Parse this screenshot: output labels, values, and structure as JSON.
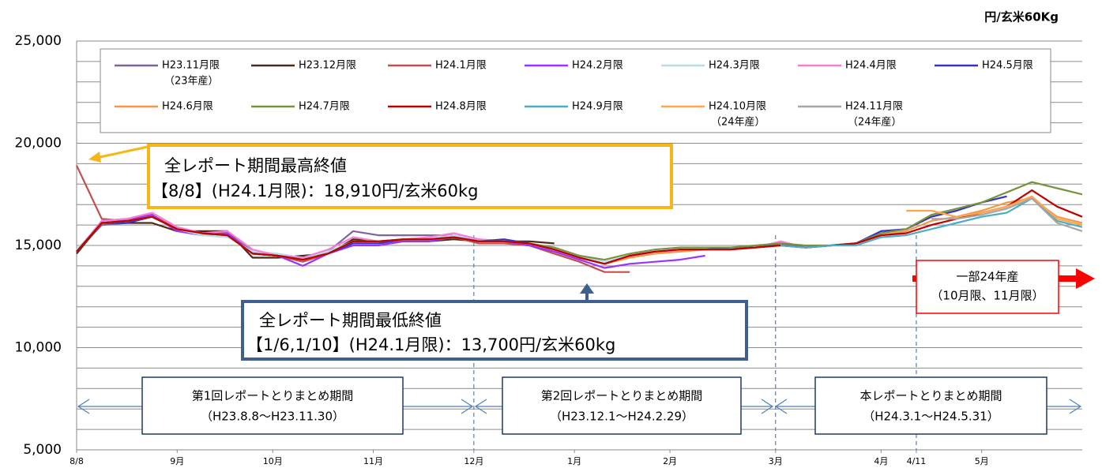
{
  "chart_data": {
    "type": "line",
    "unit_label": "円/玄米60Kg",
    "x": [
      0,
      5,
      10,
      15,
      20,
      25,
      30,
      35,
      40,
      45,
      50,
      55,
      60,
      65,
      70,
      75,
      80,
      85,
      90,
      95,
      100,
      105,
      110,
      115,
      120,
      125,
      130,
      135,
      140,
      145,
      150,
      155,
      160,
      165,
      170,
      175,
      180,
      185,
      190,
      195,
      200
    ],
    "xlim": [
      0,
      200
    ],
    "xticks": [
      {
        "value": 0,
        "label": "8/8"
      },
      {
        "value": 20,
        "label": "9月"
      },
      {
        "value": 39,
        "label": "10月"
      },
      {
        "value": 59,
        "label": "11月"
      },
      {
        "value": 79,
        "label": "12月"
      },
      {
        "value": 99,
        "label": "1月"
      },
      {
        "value": 118,
        "label": "2月"
      },
      {
        "value": 139,
        "label": "3月"
      },
      {
        "value": 160,
        "label": "4月"
      },
      {
        "value": 167,
        "label": "4/11"
      },
      {
        "value": 180,
        "label": "5月"
      }
    ],
    "ylim": [
      5000,
      25000
    ],
    "yticks": [
      {
        "value": 5000,
        "label": "5,000"
      },
      {
        "value": 10000,
        "label": "10,000"
      },
      {
        "value": 15000,
        "label": "15,000"
      },
      {
        "value": 20000,
        "label": "20,000"
      },
      {
        "value": 25000,
        "label": "25,000"
      }
    ],
    "minor_yticks": [
      6000,
      7000,
      8000,
      9000,
      11000,
      12000,
      13000,
      14000,
      16000,
      17000,
      18000,
      19000,
      21000,
      22000,
      23000,
      24000
    ],
    "grid": true,
    "series": [
      {
        "name": "H23.11月限",
        "note": "（23年産）",
        "color": "#8064a2",
        "values": [
          14700,
          16000,
          16100,
          16500,
          15700,
          15600,
          15700,
          14700,
          14500,
          14400,
          14700,
          15700,
          15500,
          15500,
          15500,
          15500,
          null,
          null,
          null,
          null,
          null,
          null,
          null,
          null,
          null,
          null,
          null,
          null,
          null,
          null,
          null,
          null,
          null,
          null,
          null,
          null,
          null,
          null,
          null,
          null,
          null
        ]
      },
      {
        "name": "H23.12月限",
        "color": "#4a2b1a",
        "values": [
          14600,
          16100,
          16100,
          16100,
          15700,
          15700,
          15700,
          14400,
          14400,
          14500,
          14600,
          15300,
          15200,
          15200,
          15200,
          15300,
          15200,
          15200,
          15200,
          15100,
          null,
          null,
          null,
          null,
          null,
          null,
          null,
          null,
          null,
          null,
          null,
          null,
          null,
          null,
          null,
          null,
          null,
          null,
          null,
          null,
          null
        ]
      },
      {
        "name": "H24.1月限",
        "color": "#c0504d",
        "values": [
          18910,
          16300,
          16200,
          16500,
          15800,
          15600,
          15600,
          14600,
          14500,
          14200,
          14600,
          15200,
          15100,
          15200,
          15200,
          15400,
          15100,
          15100,
          15000,
          14600,
          14200,
          13700,
          13700,
          null,
          null,
          null,
          null,
          null,
          null,
          null,
          null,
          null,
          null,
          null,
          null,
          null,
          null,
          null,
          null,
          null,
          null
        ]
      },
      {
        "name": "H24.2月限",
        "color": "#9933ff",
        "values": [
          14700,
          16200,
          16300,
          16500,
          15700,
          15500,
          15600,
          14600,
          14500,
          14000,
          14600,
          15000,
          15000,
          15200,
          15200,
          15400,
          15300,
          15200,
          15000,
          14700,
          14300,
          13900,
          14100,
          14200,
          14300,
          14500,
          null,
          null,
          null,
          null,
          null,
          null,
          null,
          null,
          null,
          null,
          null,
          null,
          null,
          null,
          null
        ]
      },
      {
        "name": "H24.3月限",
        "color": "#b7dee8",
        "values": [
          14800,
          16100,
          16200,
          16400,
          15800,
          15500,
          15400,
          14700,
          14600,
          14400,
          14700,
          15200,
          15100,
          15300,
          15300,
          15500,
          15300,
          15200,
          15100,
          14800,
          14500,
          14200,
          14500,
          14600,
          14700,
          14800,
          14900,
          14900,
          15100,
          null,
          null,
          null,
          null,
          null,
          null,
          null,
          null,
          null,
          null,
          null,
          null
        ]
      },
      {
        "name": "H24.4月限",
        "color": "#f57ed8",
        "values": [
          14700,
          16200,
          16300,
          16600,
          15900,
          15600,
          15700,
          14800,
          14500,
          14400,
          14800,
          15400,
          15200,
          15300,
          15400,
          15600,
          15300,
          15200,
          15100,
          14800,
          14400,
          14100,
          14500,
          14700,
          14700,
          14800,
          14800,
          14900,
          15200,
          14900,
          15000,
          15100,
          null,
          null,
          null,
          null,
          null,
          null,
          null,
          null,
          null
        ]
      },
      {
        "name": "H24.5月限",
        "color": "#3333cc",
        "values": [
          14700,
          16100,
          16100,
          16400,
          15800,
          15600,
          15500,
          14600,
          14500,
          14300,
          14600,
          15100,
          15100,
          15300,
          15300,
          15400,
          15200,
          15300,
          15100,
          14800,
          14400,
          14100,
          14500,
          14700,
          14800,
          14800,
          14900,
          14900,
          15100,
          14900,
          15000,
          15100,
          15700,
          15800,
          16400,
          16700,
          17100,
          17400,
          null,
          null,
          null
        ]
      },
      {
        "name": "H24.6月限",
        "color": "#f79646",
        "values": [
          14700,
          16100,
          16200,
          16400,
          15800,
          15600,
          15500,
          14600,
          14500,
          14300,
          14600,
          15200,
          15200,
          15300,
          15300,
          15400,
          15200,
          15200,
          15100,
          14800,
          14400,
          14100,
          14400,
          14600,
          14700,
          14800,
          14800,
          14900,
          15000,
          14900,
          15000,
          15100,
          15500,
          15700,
          16200,
          16400,
          16700,
          17100,
          17300,
          16400,
          16100
        ]
      },
      {
        "name": "H24.7月限",
        "color": "#77933c",
        "values": [
          14700,
          16100,
          16200,
          16400,
          15800,
          15600,
          15500,
          14600,
          14500,
          14300,
          14600,
          15200,
          15200,
          15300,
          15300,
          15400,
          15200,
          15200,
          15100,
          14900,
          14500,
          14300,
          14600,
          14800,
          14900,
          14900,
          14900,
          15000,
          15100,
          15000,
          15000,
          15100,
          15600,
          15800,
          16500,
          16800,
          17100,
          17600,
          18100,
          17800,
          17500
        ]
      },
      {
        "name": "H24.8月限",
        "color": "#c00000",
        "values": [
          14700,
          16100,
          16200,
          16400,
          15800,
          15600,
          15500,
          14600,
          14500,
          14300,
          14600,
          15200,
          15200,
          15300,
          15300,
          15400,
          15200,
          15200,
          15100,
          14800,
          14400,
          14100,
          14500,
          14700,
          14800,
          14800,
          14800,
          14900,
          15000,
          14900,
          15000,
          15100,
          15500,
          15600,
          16000,
          16300,
          16600,
          16900,
          17700,
          16900,
          16400
        ]
      },
      {
        "name": "H24.9月限",
        "color": "#4bacc6",
        "values": [
          null,
          null,
          null,
          null,
          null,
          null,
          null,
          null,
          null,
          null,
          null,
          null,
          null,
          null,
          null,
          null,
          null,
          null,
          null,
          null,
          null,
          null,
          null,
          null,
          null,
          null,
          null,
          null,
          15000,
          14900,
          15000,
          15000,
          15400,
          15500,
          15800,
          16100,
          16400,
          16600,
          17300,
          16200,
          15900
        ]
      },
      {
        "name": "H24.10月限",
        "note": "（24年産）",
        "color": "#ffa64d",
        "values": [
          null,
          null,
          null,
          null,
          null,
          null,
          null,
          null,
          null,
          null,
          null,
          null,
          null,
          null,
          null,
          null,
          null,
          null,
          null,
          null,
          null,
          null,
          null,
          null,
          null,
          null,
          null,
          null,
          null,
          null,
          null,
          null,
          null,
          16700,
          16700,
          16400,
          16600,
          16900,
          17400,
          16300,
          16000
        ]
      },
      {
        "name": "H24.11月限",
        "note": "（24年産）",
        "color": "#a6a6a6",
        "values": [
          null,
          null,
          null,
          null,
          null,
          null,
          null,
          null,
          null,
          null,
          null,
          null,
          null,
          null,
          null,
          null,
          null,
          null,
          null,
          null,
          null,
          null,
          null,
          null,
          null,
          null,
          null,
          null,
          null,
          null,
          null,
          null,
          null,
          null,
          16300,
          16300,
          16500,
          16800,
          17300,
          16100,
          15700
        ]
      }
    ],
    "annotations": {
      "high": {
        "title": "全レポート期間最高終値",
        "detail": "【8/8】(H24.1月限)：18,910円/玄米60kg"
      },
      "low": {
        "title": "全レポート期間最低終値",
        "detail": "【1/6,1/10】(H24.1月限)：13,700円/玄米60kg"
      },
      "new_crop": {
        "title": "一部24年産",
        "detail": "（10月限、11月限）"
      },
      "periods": [
        {
          "title": "第1回レポートとりまとめ期間",
          "detail": "（H23.8.8～H23.11.30）"
        },
        {
          "title": "第2回レポートとりまとめ期間",
          "detail": "（H23.12.1～H24.2.29）"
        },
        {
          "title": "本レポートとりまとめ期間",
          "detail": "（H24.3.1～H24.5.31）"
        }
      ]
    }
  }
}
